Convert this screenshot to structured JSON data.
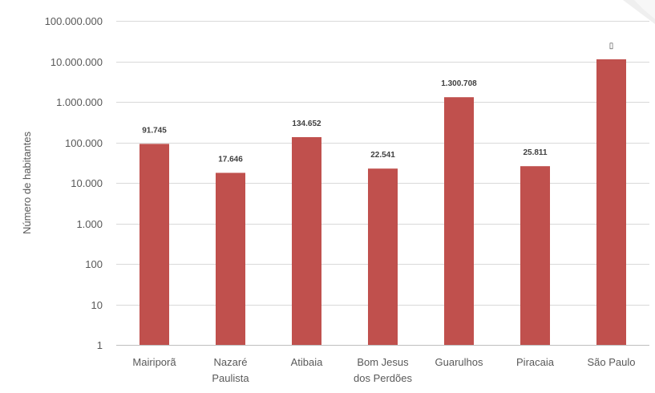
{
  "chart_data": {
    "type": "bar",
    "title": "",
    "xlabel": "",
    "ylabel": "Número  de habitantes",
    "yscale": "log",
    "ylim": [
      1,
      100000000
    ],
    "yticks": [
      1,
      10,
      100,
      1000,
      10000,
      100000,
      1000000,
      10000000,
      100000000
    ],
    "ytick_labels": [
      "1",
      "10",
      "100",
      "1.000",
      "10.000",
      "100.000",
      "1.000.000",
      "10.000.000",
      "100.000.000"
    ],
    "categories": [
      [
        "Mairiporã"
      ],
      [
        "Nazaré",
        "Paulista"
      ],
      [
        "Atibaia"
      ],
      [
        "Bom Jesus",
        "dos Perdões"
      ],
      [
        "Guarulhos"
      ],
      [
        "Piracaia"
      ],
      [
        "São Paulo"
      ]
    ],
    "values": [
      91745,
      17646,
      134652,
      22541,
      1300708,
      25811,
      11250000
    ],
    "data_labels": [
      "91.745",
      "17.646",
      "134.652",
      "22.541",
      "1.300.708",
      "25.811",
      "▯"
    ],
    "bar_color": "#c0504d",
    "grid": true,
    "legend": "none"
  }
}
